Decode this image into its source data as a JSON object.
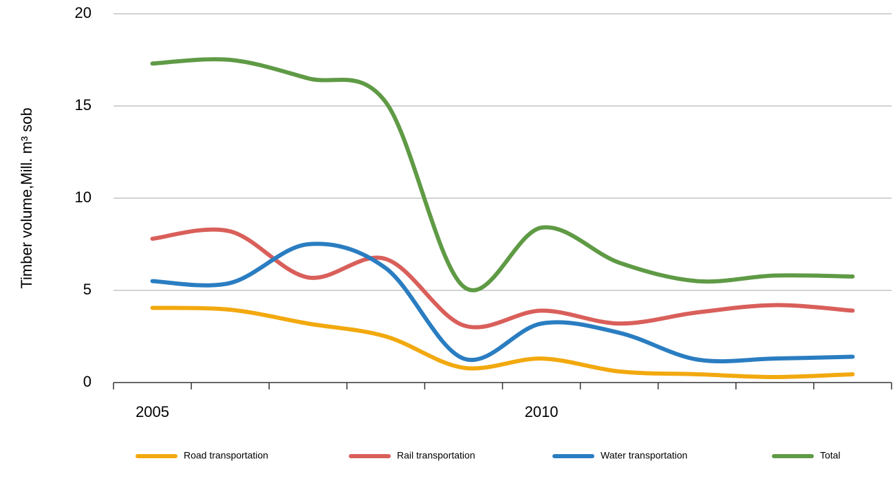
{
  "chart_data": {
    "type": "line",
    "y_label": "Timber volume,Mill.  m³ sob",
    "categories": [
      "2005",
      null,
      null,
      null,
      null,
      "2010",
      null,
      null,
      null,
      null
    ],
    "series": [
      {
        "name": "Road transportation",
        "color": "#f2a90f",
        "values": [
          4.05,
          3.95,
          3.2,
          2.5,
          0.8,
          1.3,
          0.6,
          0.45,
          0.3,
          0.45
        ]
      },
      {
        "name": "Rail transportation",
        "color": "#d95f5a",
        "values": [
          7.8,
          8.2,
          5.7,
          6.7,
          3.1,
          3.9,
          3.2,
          3.8,
          4.2,
          3.9
        ]
      },
      {
        "name": "Water transportation",
        "color": "#2a7dc1",
        "values": [
          5.5,
          5.4,
          7.5,
          6.2,
          1.3,
          3.2,
          2.7,
          1.25,
          1.3,
          1.4
        ]
      },
      {
        "name": "Total",
        "color": "#5f9a45",
        "values": [
          17.3,
          17.5,
          16.5,
          15.2,
          5.2,
          8.4,
          6.5,
          5.5,
          5.8,
          5.75
        ]
      }
    ],
    "ylim": [
      0,
      20
    ],
    "yticks": [
      0,
      5,
      10,
      15,
      20
    ],
    "grid": true,
    "legend": "bottom",
    "smooth": true
  }
}
